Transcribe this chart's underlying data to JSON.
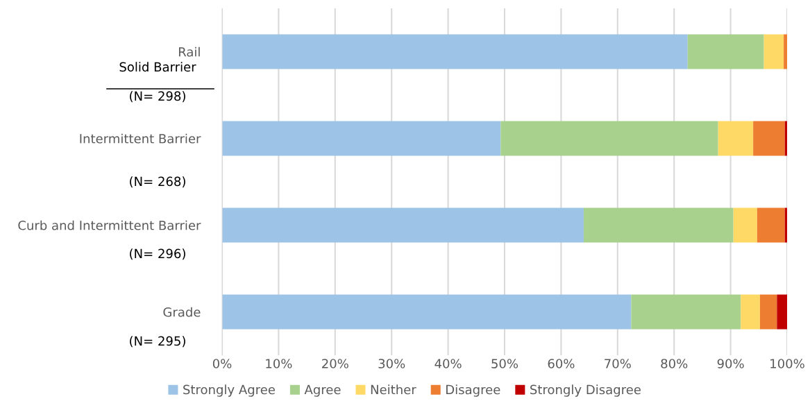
{
  "chart_data": {
    "type": "bar",
    "orientation": "horizontal",
    "stacked": true,
    "categories": [
      "Rail",
      "Intermittent Barrier",
      "Curb and Intermittent Barrier",
      "Grade"
    ],
    "series": [
      {
        "name": "Strongly Agree",
        "color": "#9dc3e6",
        "values": [
          82.4,
          49.3,
          64.0,
          72.4
        ]
      },
      {
        "name": "Agree",
        "color": "#a9d18e",
        "values": [
          13.5,
          38.5,
          26.5,
          19.4
        ]
      },
      {
        "name": "Neither",
        "color": "#ffd966",
        "values": [
          3.5,
          6.2,
          4.2,
          3.4
        ]
      },
      {
        "name": "Disagree",
        "color": "#ed7d31",
        "values": [
          0.6,
          5.6,
          4.9,
          3.0
        ]
      },
      {
        "name": "Strongly Disagree",
        "color": "#c00000",
        "values": [
          0,
          0.4,
          0.4,
          1.8
        ]
      }
    ],
    "xlim": [
      0,
      100
    ],
    "xticks": [
      {
        "value": 0,
        "label": "0%"
      },
      {
        "value": 10,
        "label": "10%"
      },
      {
        "value": 20,
        "label": "20%"
      },
      {
        "value": 30,
        "label": "30%"
      },
      {
        "value": 40,
        "label": "40%"
      },
      {
        "value": 50,
        "label": "50%"
      },
      {
        "value": 60,
        "label": "60%"
      },
      {
        "value": 70,
        "label": "70%"
      },
      {
        "value": 80,
        "label": "80%"
      },
      {
        "value": 90,
        "label": "90%"
      },
      {
        "value": 100,
        "label": "100%"
      }
    ],
    "grid": "x",
    "legend": "bottom",
    "annotations": [
      "Solid Barrier",
      "(N= 298)",
      "(N= 268)",
      "(N= 296)",
      "(N= 295)"
    ]
  }
}
